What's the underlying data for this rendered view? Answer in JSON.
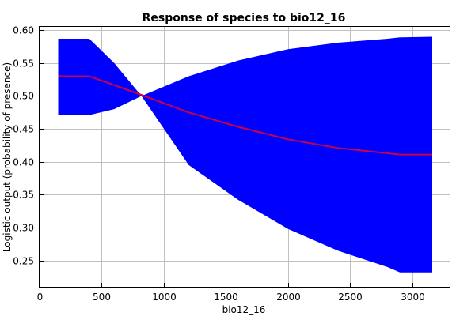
{
  "chart_data": {
    "type": "line",
    "title": "Response of species to bio12_16",
    "xlabel": "bio12_16",
    "ylabel": "Logistic output (probability of presence)",
    "xlim": [
      0,
      3300
    ],
    "ylim": [
      0.21,
      0.605
    ],
    "x_ticks": [
      0,
      500,
      1000,
      1500,
      2000,
      2500,
      3000
    ],
    "y_ticks": [
      0.25,
      0.3,
      0.35,
      0.4,
      0.45,
      0.5,
      0.55,
      0.6
    ],
    "y_tick_labels": [
      "0.25",
      "0.30",
      "0.35",
      "0.40",
      "0.45",
      "0.50",
      "0.55",
      "0.60"
    ],
    "grid": true,
    "series": [
      {
        "type": "line",
        "color": "#cc0044",
        "x": [
          150,
          400,
          800,
          1200,
          1600,
          2000,
          2400,
          2900,
          3160
        ],
        "y": [
          0.53,
          0.53,
          0.503,
          0.475,
          0.453,
          0.434,
          0.421,
          0.411,
          0.411
        ]
      },
      {
        "type": "band",
        "color": "#0000ff",
        "x": [
          150,
          400,
          600,
          820,
          1200,
          1600,
          2000,
          2400,
          2800,
          2900,
          3160
        ],
        "upper": [
          0.587,
          0.587,
          0.55,
          0.5,
          0.53,
          0.554,
          0.571,
          0.581,
          0.587,
          0.589,
          0.59
        ],
        "lower": [
          0.471,
          0.471,
          0.48,
          0.5,
          0.395,
          0.342,
          0.298,
          0.265,
          0.24,
          0.232,
          0.232
        ]
      }
    ]
  }
}
